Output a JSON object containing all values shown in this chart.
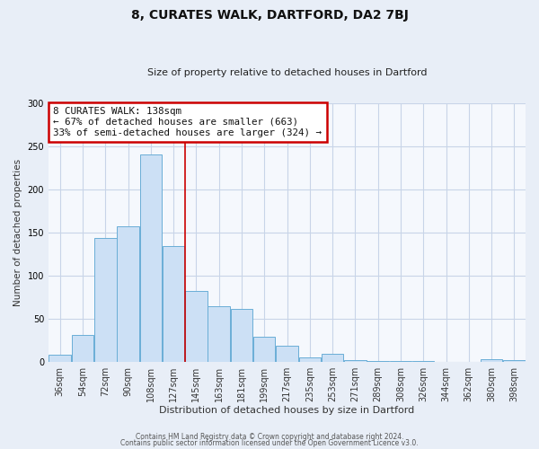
{
  "title": "8, CURATES WALK, DARTFORD, DA2 7BJ",
  "subtitle": "Size of property relative to detached houses in Dartford",
  "xlabel": "Distribution of detached houses by size in Dartford",
  "ylabel": "Number of detached properties",
  "categories": [
    "36sqm",
    "54sqm",
    "72sqm",
    "90sqm",
    "108sqm",
    "127sqm",
    "145sqm",
    "163sqm",
    "181sqm",
    "199sqm",
    "217sqm",
    "235sqm",
    "253sqm",
    "271sqm",
    "289sqm",
    "308sqm",
    "326sqm",
    "344sqm",
    "362sqm",
    "380sqm",
    "398sqm"
  ],
  "values": [
    8,
    31,
    144,
    157,
    241,
    134,
    82,
    64,
    61,
    29,
    18,
    5,
    9,
    2,
    1,
    1,
    1,
    0,
    0,
    3,
    2
  ],
  "bar_color": "#cce0f5",
  "bar_edge_color": "#6aaed6",
  "vline_color": "#cc0000",
  "vline_pos": 5.5,
  "annotation_title": "8 CURATES WALK: 138sqm",
  "annotation_line2": "← 67% of detached houses are smaller (663)",
  "annotation_line3": "33% of semi-detached houses are larger (324) →",
  "annotation_box_color": "#cc0000",
  "ylim": [
    0,
    300
  ],
  "yticks": [
    0,
    50,
    100,
    150,
    200,
    250,
    300
  ],
  "footer1": "Contains HM Land Registry data © Crown copyright and database right 2024.",
  "footer2": "Contains public sector information licensed under the Open Government Licence v3.0.",
  "bg_color": "#e8eef7",
  "plot_bg_color": "#f5f8fd",
  "grid_color": "#c8d4e8"
}
